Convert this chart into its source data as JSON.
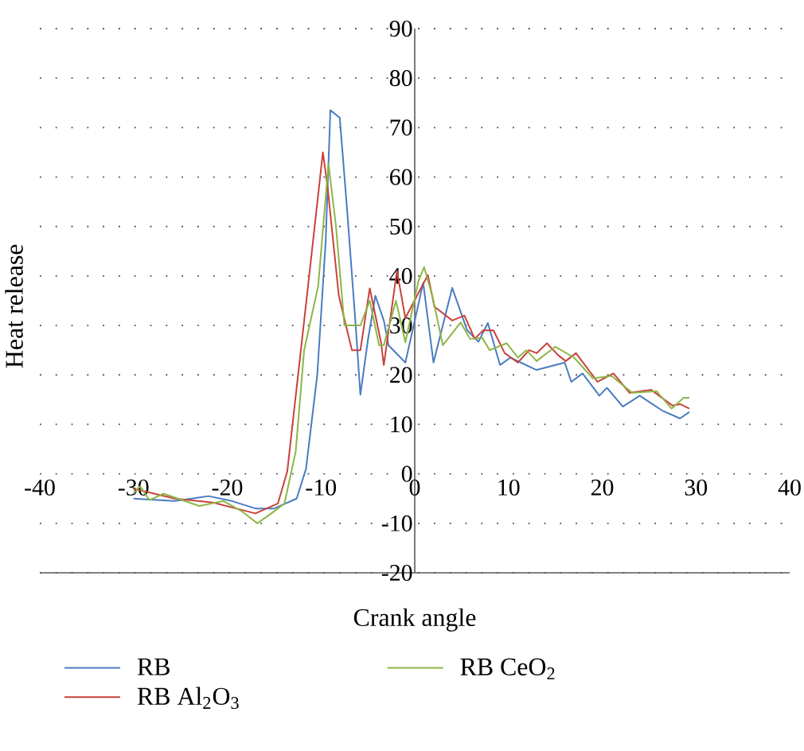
{
  "chart_data": {
    "type": "line",
    "xlabel": "Crank angle",
    "ylabel": "Heat release",
    "xlim": [
      -40,
      40
    ],
    "xticks": [
      -40,
      -30,
      -20,
      -10,
      0,
      10,
      20,
      30,
      40
    ],
    "ylim": [
      -20,
      90
    ],
    "yticks": [
      -20,
      -10,
      0,
      10,
      20,
      30,
      40,
      50,
      60,
      70,
      80,
      90
    ],
    "grid": "y",
    "legend": "bottom",
    "marker": "none",
    "line_style": "solid",
    "series": [
      {
        "name": "RB",
        "color": "#4a7cc0",
        "x": [
          -30,
          -25.6,
          -22,
          -19.5,
          -17,
          -15,
          -12.6,
          -11.6,
          -10.4,
          -9.5,
          -9,
          -8,
          -7.2,
          -6.3,
          -5.8,
          -5,
          -4.2,
          -3.3,
          -2.8,
          -1,
          0.9,
          2,
          4,
          5.6,
          6.8,
          7.8,
          9.1,
          10.2,
          13,
          16,
          16.7,
          17.9,
          19.7,
          20.5,
          22.2,
          24,
          26.4,
          28.3,
          29.3
        ],
        "values": [
          -5,
          -5.5,
          -4.5,
          -5.5,
          -7,
          -7,
          -5,
          1,
          20,
          47,
          73.5,
          72,
          53,
          30,
          16,
          27,
          36,
          31,
          26,
          22.5,
          38.6,
          22.5,
          37.6,
          29,
          26.7,
          30.5,
          22,
          23.5,
          21,
          22.5,
          18.6,
          20.3,
          15.8,
          17.4,
          13.6,
          15.8,
          12.8,
          11.2,
          12.5
        ]
      },
      {
        "name": "RB Al$_{2}$O$_{3}$",
        "color": "#c8423c",
        "x": [
          -30,
          -25.6,
          -21.5,
          -17,
          -14.6,
          -13.6,
          -11.5,
          -9.8,
          -9.3,
          -8.1,
          -6.7,
          -5.8,
          -4.8,
          -3.6,
          -3.3,
          -1.9,
          -1,
          1.4,
          2.1,
          4,
          5.3,
          6.4,
          7.3,
          8.4,
          9.6,
          11,
          12.2,
          13,
          14.1,
          15.3,
          16.1,
          17.2,
          19.5,
          21.2,
          22.9,
          25.2,
          27.5,
          28.3,
          29.3
        ],
        "values": [
          -3,
          -5,
          -5.8,
          -8,
          -6,
          0.5,
          36,
          65,
          58,
          36,
          25,
          25,
          37.5,
          26.6,
          22,
          41,
          31.5,
          40.2,
          33.8,
          31,
          32,
          27.3,
          29,
          29,
          24.4,
          22.5,
          25,
          24.4,
          26.4,
          24,
          22.8,
          24.4,
          18.6,
          20.3,
          16.4,
          17,
          13.8,
          14.1,
          13.2
        ]
      },
      {
        "name": "RB CeO$_{2}$",
        "color": "#8db646",
        "x": [
          -30,
          -29.3,
          -28.3,
          -26.8,
          -23,
          -20.4,
          -18.5,
          -16.8,
          -15.3,
          -13.9,
          -12.7,
          -11.8,
          -10.3,
          -9.2,
          -8.4,
          -7.5,
          -5.8,
          -4.8,
          -3.8,
          -3.3,
          -2,
          -1,
          0.4,
          1,
          1.9,
          3,
          4.9,
          5.9,
          7.2,
          8,
          9.8,
          11,
          11.9,
          13,
          15,
          17,
          19,
          21,
          23.2,
          25.8,
          27.4,
          28.7,
          29.3
        ],
        "values": [
          -4,
          -2.5,
          -5.3,
          -4,
          -6.5,
          -5.5,
          -7.5,
          -10,
          -8,
          -6,
          4.5,
          25,
          38,
          62.7,
          50,
          30,
          30,
          35,
          26,
          26,
          35,
          26.6,
          39,
          41.8,
          35.8,
          26,
          30.6,
          27.3,
          27.5,
          25,
          26.4,
          23.5,
          25,
          22.8,
          25.7,
          23.5,
          19.3,
          19.8,
          16.4,
          16.7,
          13.2,
          15.4,
          15.4
        ]
      }
    ]
  }
}
